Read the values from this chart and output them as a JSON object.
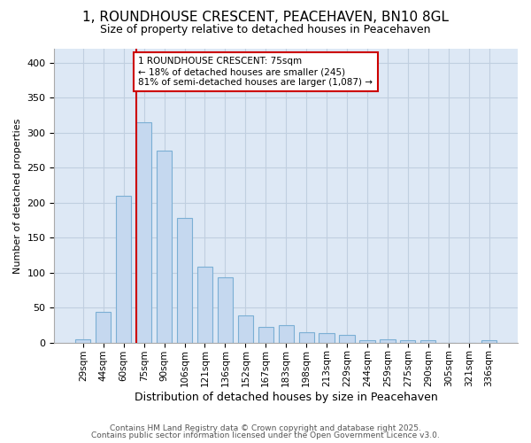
{
  "title1": "1, ROUNDHOUSE CRESCENT, PEACEHAVEN, BN10 8GL",
  "title2": "Size of property relative to detached houses in Peacehaven",
  "xlabel": "Distribution of detached houses by size in Peacehaven",
  "ylabel": "Number of detached properties",
  "categories": [
    "29sqm",
    "44sqm",
    "60sqm",
    "75sqm",
    "90sqm",
    "106sqm",
    "121sqm",
    "136sqm",
    "152sqm",
    "167sqm",
    "183sqm",
    "198sqm",
    "213sqm",
    "229sqm",
    "244sqm",
    "259sqm",
    "275sqm",
    "290sqm",
    "305sqm",
    "321sqm",
    "336sqm"
  ],
  "values": [
    5,
    44,
    210,
    315,
    275,
    178,
    109,
    93,
    39,
    23,
    25,
    15,
    13,
    11,
    4,
    5,
    3,
    4,
    0,
    0,
    4
  ],
  "bar_color": "#c5d8ef",
  "bar_edge_color": "#7bafd4",
  "grid_color": "#c0cfe0",
  "plot_bg_color": "#dde8f5",
  "fig_bg_color": "#ffffff",
  "vline_color": "#cc0000",
  "vline_x_index": 3,
  "annotation_line1": "1 ROUNDHOUSE CRESCENT: 75sqm",
  "annotation_line2": "← 18% of detached houses are smaller (245)",
  "annotation_line3": "81% of semi-detached houses are larger (1,087) →",
  "annotation_box_color": "#cc0000",
  "footer1": "Contains HM Land Registry data © Crown copyright and database right 2025.",
  "footer2": "Contains public sector information licensed under the Open Government Licence v3.0.",
  "ylim": [
    0,
    420
  ],
  "yticks": [
    0,
    50,
    100,
    150,
    200,
    250,
    300,
    350,
    400
  ],
  "title1_fontsize": 11,
  "title2_fontsize": 9,
  "xlabel_fontsize": 9,
  "ylabel_fontsize": 8,
  "bar_width": 0.75
}
